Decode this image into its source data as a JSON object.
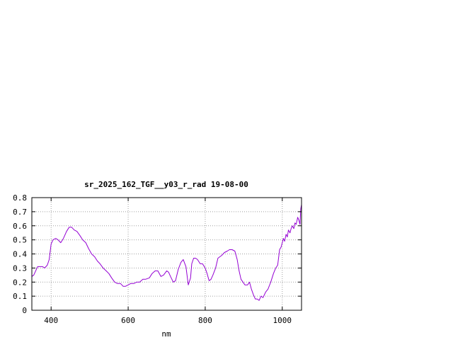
{
  "chart_data": {
    "type": "line",
    "title": "sr_2025_162_TGF__y03_r_rad 19-08-00",
    "xlabel": "nm",
    "ylabel": "",
    "xlim": [
      350,
      1050
    ],
    "ylim": [
      0,
      0.8
    ],
    "grid": true,
    "x_ticks": [
      400,
      600,
      800,
      1000
    ],
    "x_tick_labels": [
      "400",
      "600",
      "800",
      "1000"
    ],
    "y_ticks": [
      0,
      0.1,
      0.2,
      0.3,
      0.4,
      0.5,
      0.6,
      0.7,
      0.8
    ],
    "y_tick_labels": [
      "0",
      "0.1",
      "0.2",
      "0.3",
      "0.4",
      "0.5",
      "0.6",
      "0.7",
      "0.8"
    ],
    "colors": {
      "series": "#9400d3",
      "grid": "#a0a0a0",
      "axis": "#000000"
    },
    "series": [
      {
        "x": [
          350,
          355,
          360,
          365,
          370,
          378,
          383,
          390,
          395,
          400,
          405,
          412,
          418,
          425,
          432,
          440,
          447,
          453,
          460,
          467,
          475,
          482,
          490,
          497,
          505,
          513,
          520,
          527,
          535,
          543,
          550,
          557,
          565,
          572,
          580,
          587,
          593,
          600,
          607,
          615,
          622,
          630,
          638,
          645,
          655,
          662,
          670,
          677,
          685,
          692,
          700,
          705,
          710,
          717,
          723,
          730,
          737,
          743,
          750,
          756,
          762,
          765,
          770,
          775,
          780,
          787,
          793,
          800,
          805,
          810,
          815,
          820,
          827,
          833,
          838,
          843,
          850,
          857,
          863,
          870,
          877,
          883,
          888,
          893,
          898,
          903,
          910,
          915,
          920,
          925,
          930,
          935,
          940,
          945,
          950,
          957,
          963,
          970,
          977,
          983,
          988,
          993,
          997,
          1000,
          1003,
          1006,
          1010,
          1013,
          1016,
          1020,
          1023,
          1026,
          1030,
          1033,
          1036,
          1040,
          1043,
          1046,
          1048,
          1050
        ],
        "y": [
          0.24,
          0.25,
          0.28,
          0.31,
          0.31,
          0.31,
          0.3,
          0.32,
          0.36,
          0.47,
          0.5,
          0.51,
          0.5,
          0.48,
          0.51,
          0.56,
          0.59,
          0.59,
          0.57,
          0.56,
          0.53,
          0.5,
          0.48,
          0.44,
          0.4,
          0.38,
          0.35,
          0.33,
          0.3,
          0.28,
          0.26,
          0.23,
          0.2,
          0.19,
          0.19,
          0.17,
          0.17,
          0.18,
          0.19,
          0.19,
          0.2,
          0.2,
          0.22,
          0.22,
          0.23,
          0.26,
          0.28,
          0.28,
          0.24,
          0.25,
          0.28,
          0.27,
          0.24,
          0.2,
          0.21,
          0.29,
          0.34,
          0.36,
          0.31,
          0.18,
          0.23,
          0.33,
          0.37,
          0.37,
          0.36,
          0.33,
          0.33,
          0.3,
          0.26,
          0.21,
          0.22,
          0.25,
          0.3,
          0.37,
          0.38,
          0.39,
          0.41,
          0.42,
          0.43,
          0.43,
          0.42,
          0.36,
          0.28,
          0.22,
          0.2,
          0.18,
          0.18,
          0.2,
          0.15,
          0.11,
          0.08,
          0.08,
          0.07,
          0.1,
          0.09,
          0.13,
          0.15,
          0.2,
          0.26,
          0.3,
          0.32,
          0.43,
          0.45,
          0.48,
          0.51,
          0.49,
          0.54,
          0.52,
          0.57,
          0.55,
          0.58,
          0.6,
          0.58,
          0.62,
          0.61,
          0.66,
          0.64,
          0.61,
          0.72,
          0.75
        ]
      }
    ]
  }
}
